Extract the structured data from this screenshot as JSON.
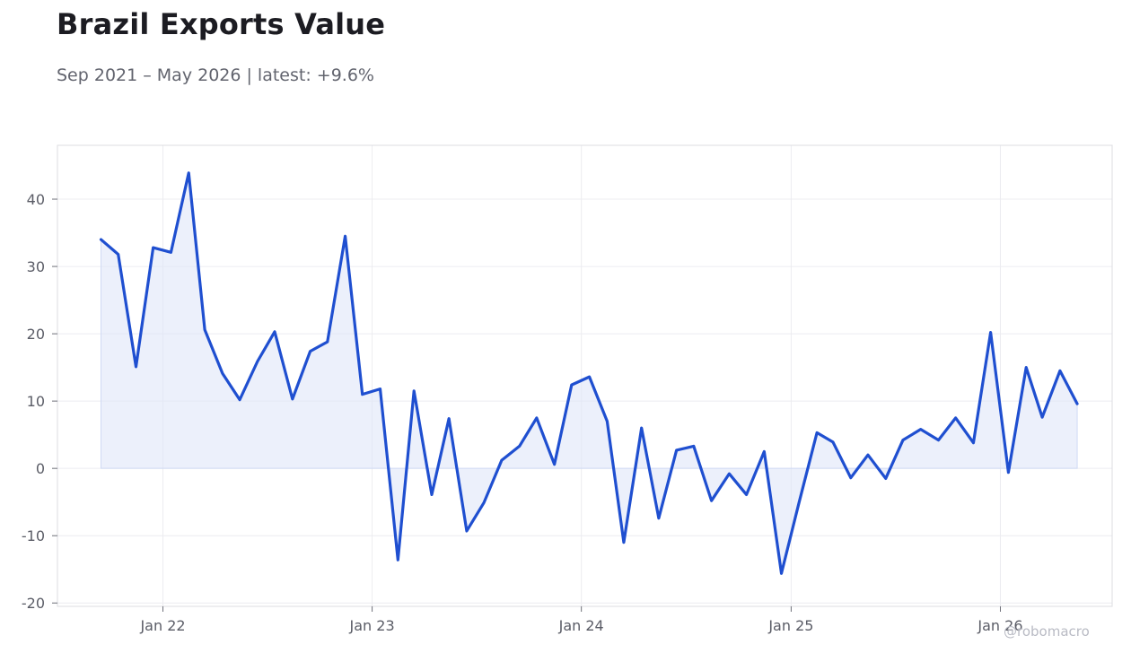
{
  "header": {
    "title": "Brazil Exports Value",
    "subtitle": "Sep 2021 – May 2026 | latest: +9.6%"
  },
  "watermark": "@robomacro",
  "colors": {
    "line": "#1f4fd0",
    "fill": "#dfe6f8",
    "grid": "#ececf0",
    "frame": "#dcdde2"
  },
  "chart_data": {
    "type": "area",
    "title": "Brazil Exports Value",
    "subtitle": "Sep 2021 – May 2026 | latest: +9.6%",
    "xlabel": "",
    "ylabel": "",
    "x_range": [
      "2021-07-01",
      "2026-07-15"
    ],
    "ylim": [
      -20.5,
      48
    ],
    "y_ticks": [
      -20,
      -10,
      0,
      10,
      20,
      30,
      40
    ],
    "x_ticks": [
      {
        "date": "2022-01-01",
        "label": "Jan 22"
      },
      {
        "date": "2023-01-01",
        "label": "Jan 23"
      },
      {
        "date": "2024-01-01",
        "label": "Jan 24"
      },
      {
        "date": "2025-01-01",
        "label": "Jan 25"
      },
      {
        "date": "2026-01-01",
        "label": "Jan 26"
      }
    ],
    "grid": true,
    "series": [
      {
        "x": [
          "2021-09",
          "2021-10",
          "2021-11",
          "2021-12",
          "2022-01",
          "2022-02",
          "2022-03",
          "2022-04",
          "2022-05",
          "2022-06",
          "2022-07",
          "2022-08",
          "2022-09",
          "2022-10",
          "2022-11",
          "2022-12",
          "2023-01",
          "2023-02",
          "2023-03",
          "2023-04",
          "2023-05",
          "2023-06",
          "2023-07",
          "2023-08",
          "2023-09",
          "2023-10",
          "2023-11",
          "2023-12",
          "2024-01",
          "2024-02",
          "2024-03",
          "2024-04",
          "2024-05",
          "2024-06",
          "2024-07",
          "2024-08",
          "2024-09",
          "2024-10",
          "2024-11",
          "2024-12",
          "2025-01",
          "2025-02",
          "2025-03",
          "2025-04",
          "2025-05",
          "2025-06",
          "2025-07",
          "2025-08",
          "2025-09",
          "2025-10",
          "2025-11",
          "2025-12",
          "2026-01",
          "2026-02",
          "2026-03",
          "2026-04",
          "2026-05"
        ],
        "values": [
          34.0,
          31.8,
          15.1,
          32.8,
          32.1,
          43.9,
          20.6,
          14.1,
          10.2,
          15.9,
          20.3,
          10.3,
          17.4,
          18.8,
          34.5,
          11.0,
          11.8,
          -13.6,
          11.5,
          -3.9,
          7.4,
          -9.3,
          -5.1,
          1.2,
          3.3,
          7.5,
          0.6,
          12.4,
          13.6,
          7.0,
          -11.0,
          6.0,
          -7.4,
          2.7,
          3.3,
          -4.8,
          -0.8,
          -3.9,
          2.5,
          -15.6,
          -5.0,
          5.3,
          3.9,
          -1.4,
          2.0,
          -1.5,
          4.2,
          5.8,
          4.2,
          7.5,
          3.8,
          20.2,
          -0.6,
          15.0,
          7.6,
          14.5,
          9.6
        ]
      }
    ]
  }
}
